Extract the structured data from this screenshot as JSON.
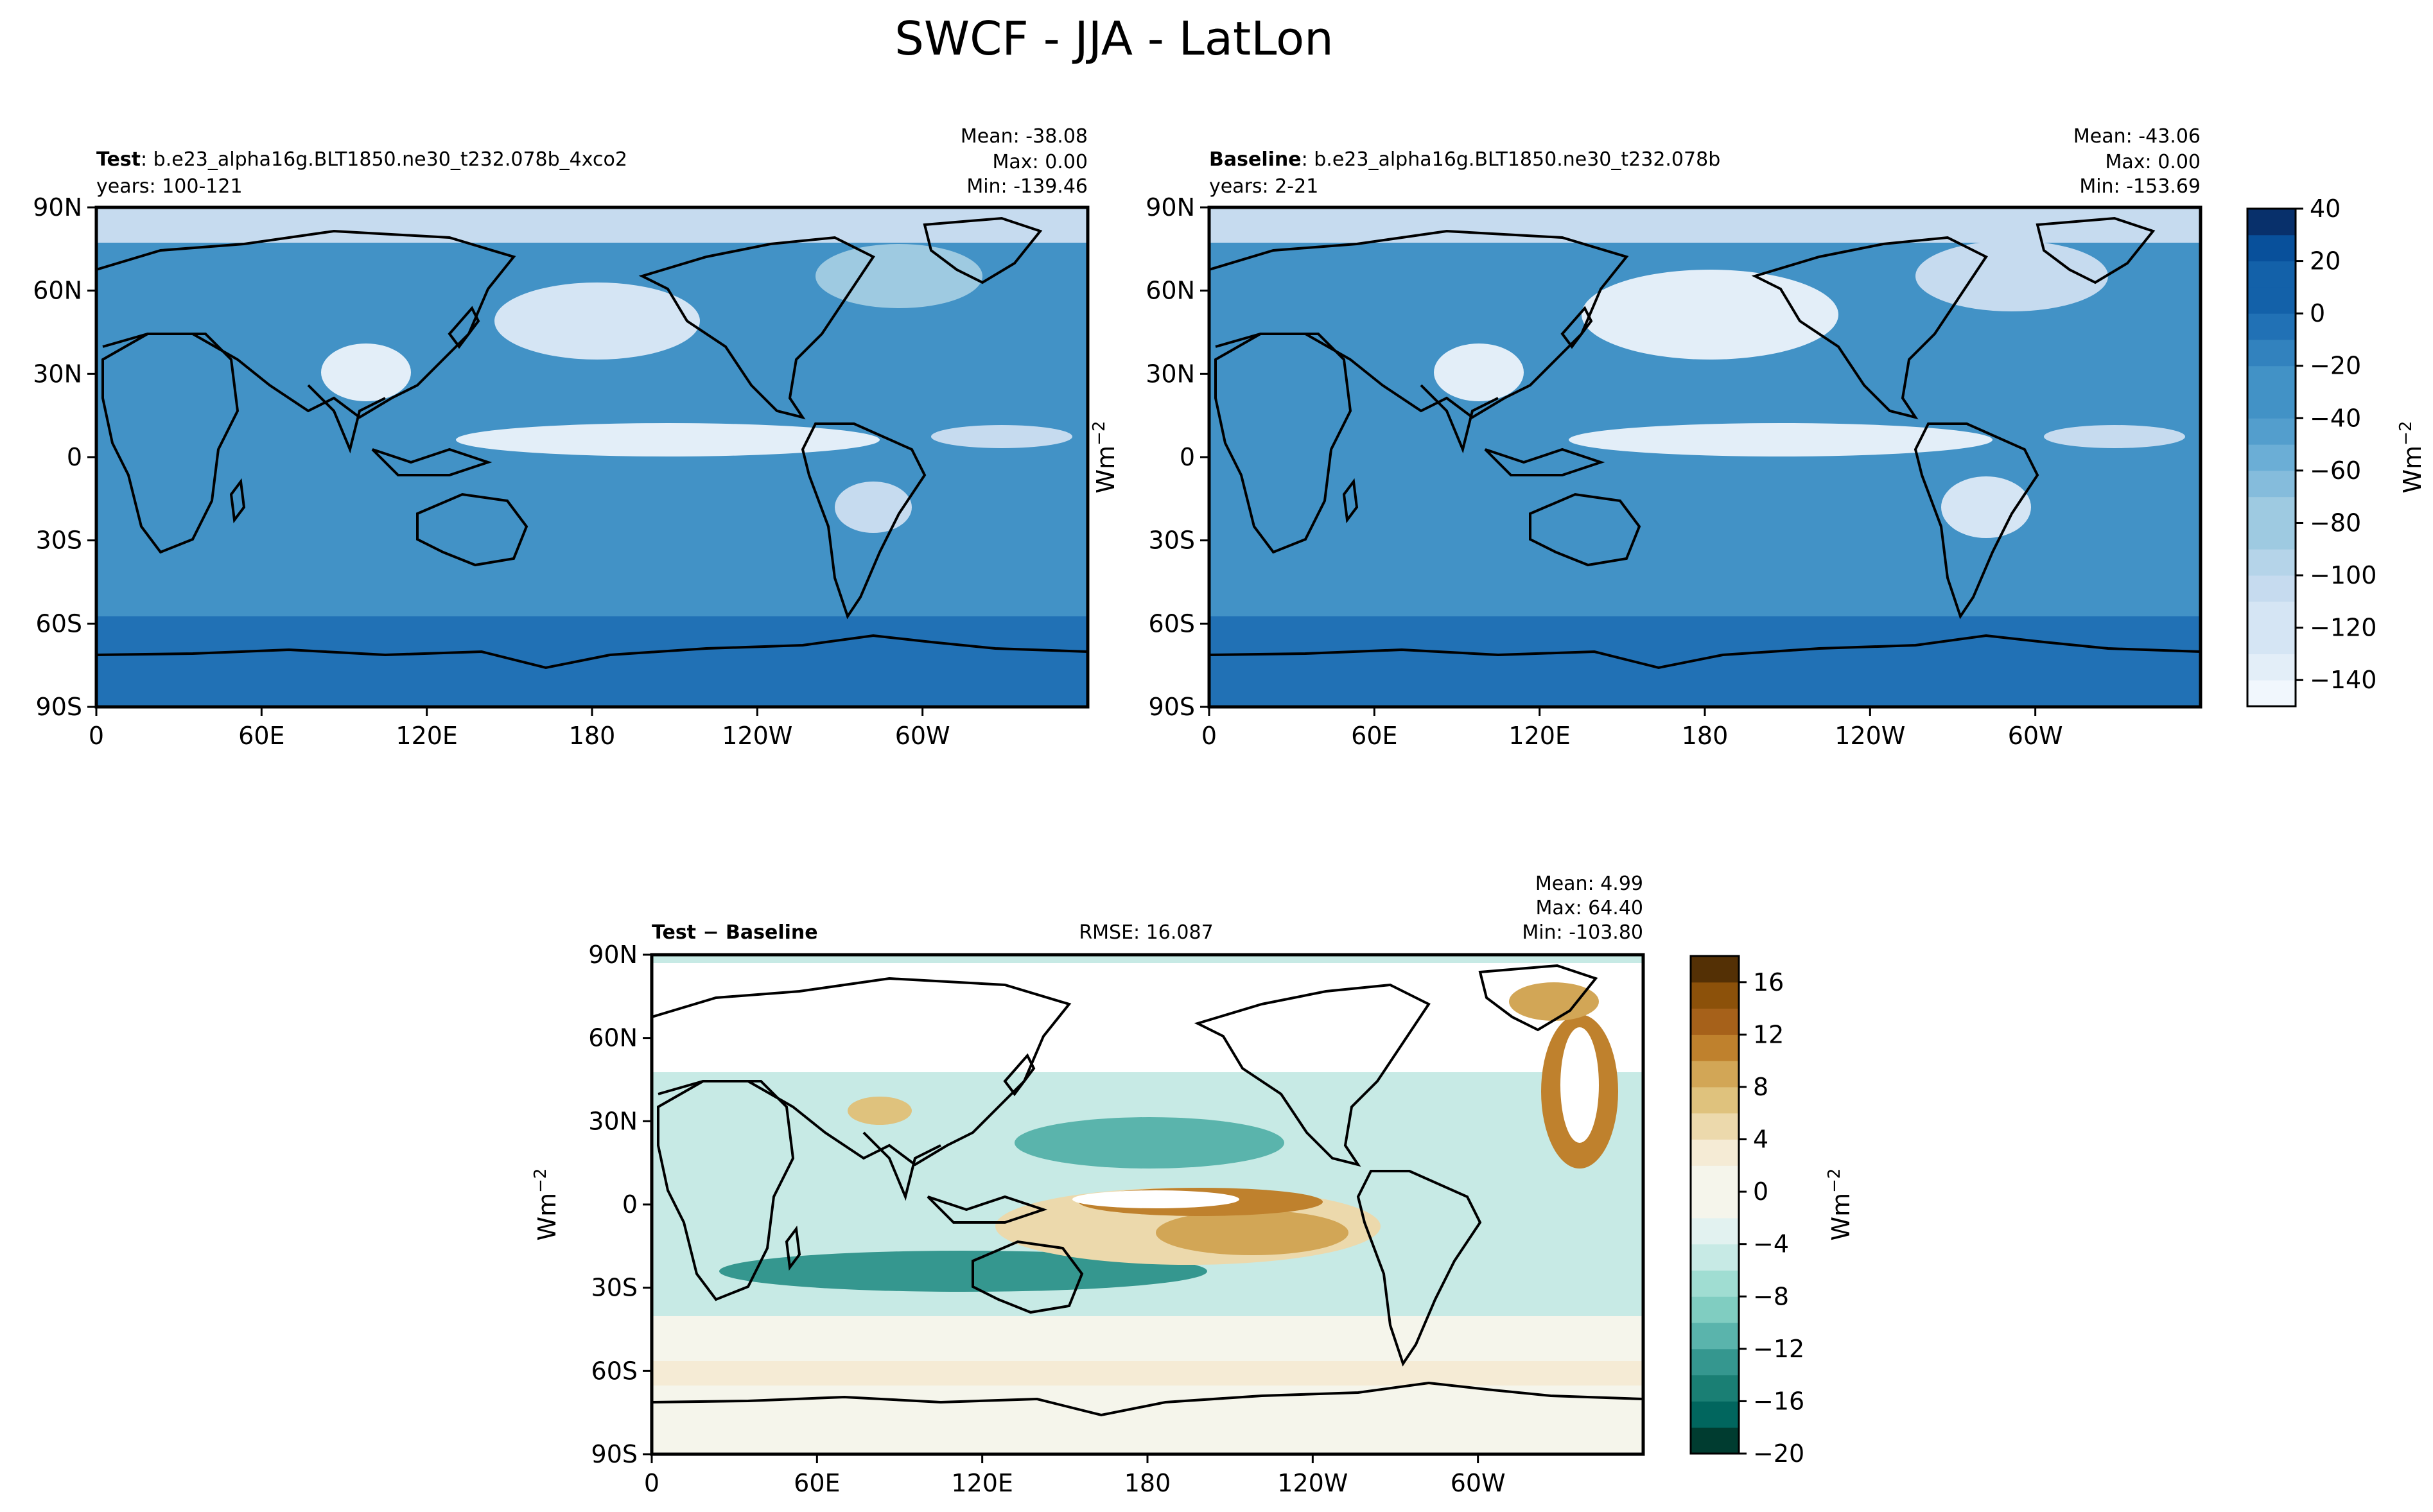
{
  "title": "SWCF - JJA - LatLon",
  "colors": {
    "seq": [
      "#08306b",
      "#08509b",
      "#1361a9",
      "#2171b5",
      "#3282be",
      "#4292c6",
      "#539ecd",
      "#6baed6",
      "#85bcdc",
      "#9ecae1",
      "#b5d4e9",
      "#c6dbef",
      "#d5e5f4",
      "#e3eef8",
      "#f1f7fd"
    ],
    "div": [
      "#543005",
      "#8c510a",
      "#a6611a",
      "#bf812d",
      "#d2a656",
      "#dfc27d",
      "#ecd9ac",
      "#f5ebd5",
      "#f5f5eb",
      "#e2f2f0",
      "#c7eae5",
      "#a0ddd2",
      "#80cdc1",
      "#5ab4ac",
      "#35978f",
      "#1a7f74",
      "#01665e",
      "#003c30"
    ],
    "continent": "#000000",
    "diff_land": "#ffffff"
  },
  "test_panel": {
    "label_bold": "Test",
    "label_rest": ": b.e23_alpha16g.BLT1850.ne30_t232.078b_4xco2",
    "years": "years: 100-121",
    "mean": "Mean: -38.08",
    "max": "Max:  0.00",
    "min": "Min: -139.46"
  },
  "baseline_panel": {
    "label_bold": "Baseline",
    "label_rest": ": b.e23_alpha16g.BLT1850.ne30_t232.078b",
    "years": "years: 2-21",
    "mean": "Mean: -43.06",
    "max": "Max:  0.00",
    "min": "Min: -153.69"
  },
  "diff_panel": {
    "label": "Test − Baseline",
    "rmse": "RMSE: 16.087",
    "mean": "Mean:  4.99",
    "max": "Max: 64.40",
    "min": "Min: -103.80"
  },
  "units": "Wm",
  "units_exp": "−2",
  "chart_data": [
    {
      "type": "heatmap",
      "name": "Test",
      "xlabel": "",
      "ylabel": "",
      "x_ticks": [
        "0",
        "60E",
        "120E",
        "180",
        "120W",
        "60W"
      ],
      "y_ticks": [
        "90N",
        "60N",
        "30N",
        "0",
        "30S",
        "60S",
        "90S"
      ],
      "colorbar": {
        "levels": [
          40,
          30,
          20,
          10,
          0,
          -10,
          -20,
          -30,
          -40,
          -50,
          -60,
          -70,
          -80,
          -90,
          -100,
          -110,
          -120,
          -130,
          -140,
          -150
        ],
        "tick_labels": [
          "40",
          "20",
          "0",
          "−20",
          "−40",
          "−60",
          "−80",
          "−100",
          "−120",
          "−140"
        ],
        "label": "Wm−2"
      },
      "stats": {
        "mean": -38.08,
        "max": 0.0,
        "min": -139.46
      }
    },
    {
      "type": "heatmap",
      "name": "Baseline",
      "x_ticks": [
        "0",
        "60E",
        "120E",
        "180",
        "120W",
        "60W"
      ],
      "y_ticks": [
        "90N",
        "60N",
        "30N",
        "0",
        "30S",
        "60S",
        "90S"
      ],
      "stats": {
        "mean": -43.06,
        "max": 0.0,
        "min": -153.69
      }
    },
    {
      "type": "heatmap",
      "name": "Test − Baseline",
      "x_ticks": [
        "0",
        "60E",
        "120E",
        "180",
        "120W",
        "60W"
      ],
      "y_ticks": [
        "90N",
        "60N",
        "30N",
        "0",
        "30S",
        "60S",
        "90S"
      ],
      "colorbar": {
        "levels": [
          -20,
          -18,
          -16,
          -14,
          -12,
          -10,
          -8,
          -6,
          -4,
          -2,
          0,
          2,
          4,
          6,
          8,
          10,
          12,
          14,
          16,
          18
        ],
        "tick_labels": [
          "16",
          "12",
          "8",
          "4",
          "0",
          "−4",
          "−8",
          "−12",
          "−16",
          "−20"
        ],
        "label": "Wm−2"
      },
      "stats": {
        "mean": 4.99,
        "max": 64.4,
        "min": -103.8,
        "rmse": 16.087
      }
    }
  ]
}
